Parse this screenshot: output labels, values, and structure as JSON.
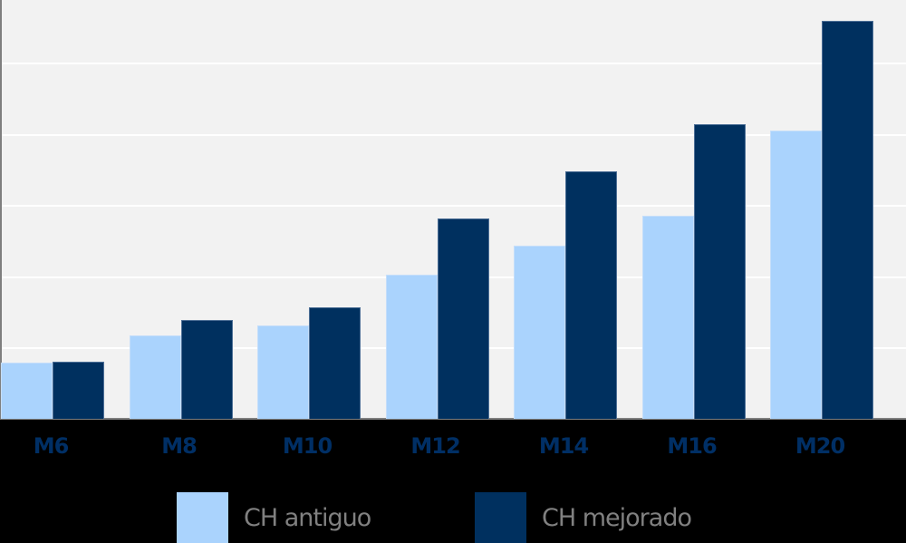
{
  "chart_data": {
    "type": "bar",
    "title": "",
    "xlabel": "",
    "ylabel": "",
    "categories": [
      "M6",
      "M8",
      "M10",
      "M12",
      "M14",
      "M16",
      "M20"
    ],
    "series": [
      {
        "name": "CH antiguo",
        "color": "#aad3fd",
        "values": [
          0.79,
          1.17,
          1.31,
          2.02,
          2.43,
          2.85,
          4.05
        ]
      },
      {
        "name": "CH mejorado",
        "color": "#00305f",
        "values": [
          0.8,
          1.39,
          1.56,
          2.81,
          3.47,
          4.13,
          5.59
        ]
      }
    ],
    "ylim": [
      0,
      5.89
    ],
    "y_ticks_visible": false,
    "gridlines": [
      1,
      2,
      3,
      4,
      5
    ],
    "grid": true,
    "legend_position": "bottom",
    "units_note": "values in gridline units (no axis tick labels shown)"
  },
  "legend": [
    {
      "label": "CH antiguo",
      "color": "#aad3fd"
    },
    {
      "label": "CH mejorado",
      "color": "#00305f"
    }
  ],
  "colors": {
    "plot_background": "#f2f2f2",
    "page_background": "#000000",
    "category_label": "#002f65",
    "legend_text": "#808080"
  }
}
